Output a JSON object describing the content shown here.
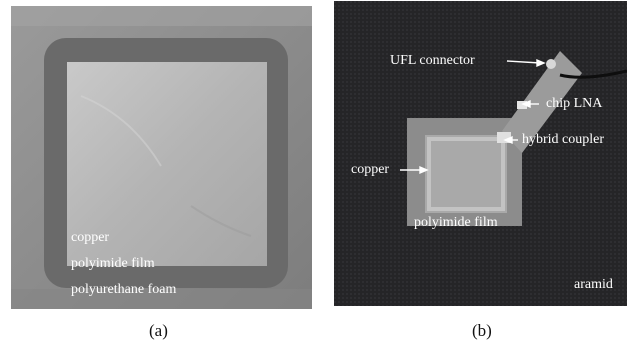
{
  "figure": {
    "panel_a": {
      "caption": "(a)",
      "labels": {
        "copper": "copper",
        "polyimide": "polyimide film",
        "foam": "polyurethane foam"
      }
    },
    "panel_b": {
      "caption": "(b)",
      "labels": {
        "ufl": "UFL connector",
        "lna": "chip LNA",
        "coupler": "hybrid coupler",
        "copper": "copper",
        "polyimide": "polyimide film",
        "aramid": "aramid"
      }
    }
  }
}
